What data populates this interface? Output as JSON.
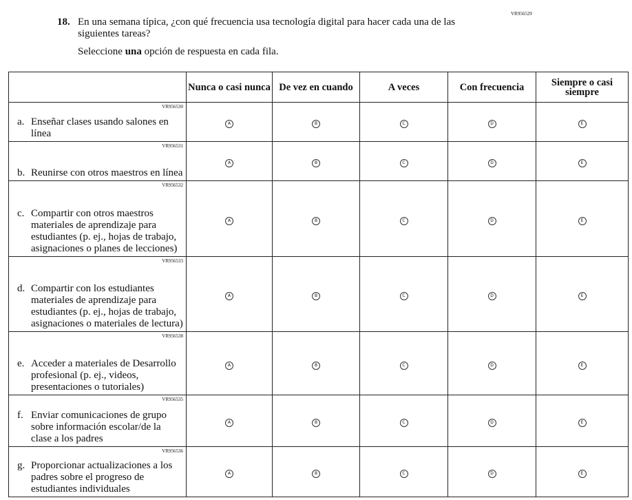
{
  "question": {
    "number": "18.",
    "code": "VR956529",
    "text": "En una semana típica, ¿con qué frecuencia usa tecnología digital para hacer cada una de las siguientes tareas?",
    "instruction": [
      "Seleccione ",
      "una",
      " opción de respuesta en cada fila."
    ]
  },
  "table": {
    "headers": [
      "Nunca o casi nunca",
      "De vez en cuando",
      "A veces",
      "Con frecuencia",
      "Siempre o casi siempre"
    ],
    "bubble_letters": [
      "A",
      "B",
      "C",
      "D",
      "E"
    ],
    "rows": [
      {
        "code": "VR956530",
        "letter": "a.",
        "text": "Enseñar clases usando salones en línea"
      },
      {
        "code": "VR956531",
        "letter": "b.",
        "text": "Reunirse con otros maestros en línea"
      },
      {
        "code": "VR956532",
        "letter": "c.",
        "text": "Compartir con otros maestros materiales de aprendizaje para estudiantes (p. ej., hojas de trabajo, asignaciones o planes de lecciones)"
      },
      {
        "code": "VR956533",
        "letter": "d.",
        "text": "Compartir con los estudiantes materiales de aprendizaje para estudiantes (p. ej., hojas de trabajo, asignaciones o materiales de lectura)"
      },
      {
        "code": "VR956538",
        "letter": "e.",
        "text": "Acceder a materiales de Desarrollo profesional (p. ej., videos, presentaciones o tutoriales)"
      },
      {
        "code": "VR956535",
        "letter": "f.",
        "text": "Enviar comunicaciones de grupo sobre información escolar/de la clase a los padres"
      },
      {
        "code": "VR956536",
        "letter": "g.",
        "text": "Proporcionar actualizaciones a los padres sobre el progreso de estudiantes individuales"
      }
    ]
  }
}
